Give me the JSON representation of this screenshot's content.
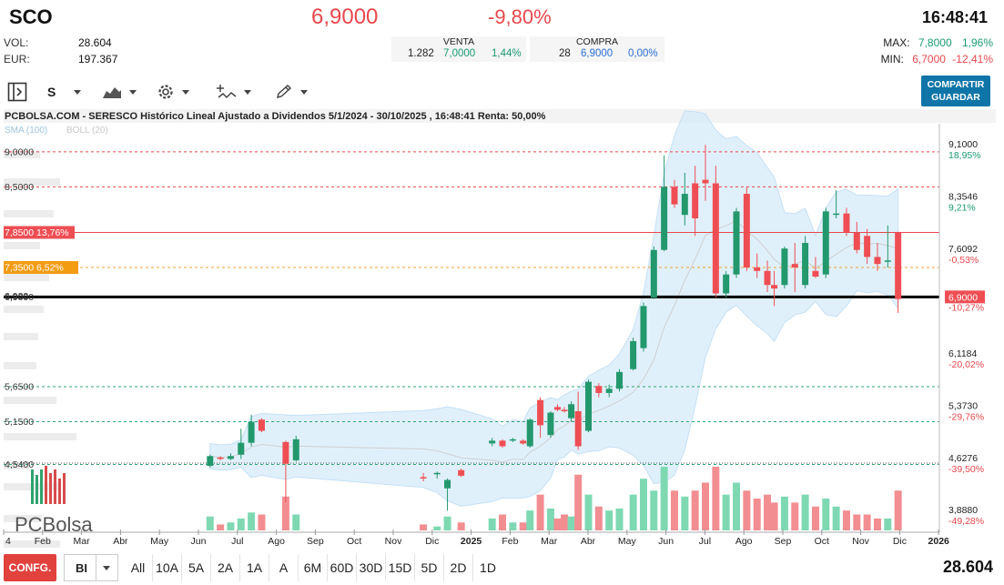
{
  "header": {
    "ticker": "SCO",
    "price": "6,9000",
    "change_pct": "-9,80%",
    "time": "16:48:41",
    "vol_label": "VOL:",
    "vol_value": "28.604",
    "eur_label": "EUR:",
    "eur_value": "197.367",
    "venta": {
      "label": "VENTA",
      "qty": "1.282",
      "price": "7,0000",
      "pct": "1,44%"
    },
    "compra": {
      "label": "COMPRA",
      "qty": "28",
      "price": "6,9000",
      "pct": "0,00%"
    },
    "max_label": "MAX:",
    "max_value": "7,8000",
    "max_pct": "1,96%",
    "min_label": "MIN:",
    "min_value": "6,7000",
    "min_pct": "-12,41%"
  },
  "toolbar": {
    "timeframe_label": "S",
    "share_label_1": "COMPARTIR",
    "share_label_2": "GUARDAR"
  },
  "chart": {
    "title": "PCBOLSA.COM - SERESCO Histórico Lineal Ajustado a Dividendos 5/1/2024 - 30/10/2025 , 16:48:41 Renta: 50,00%",
    "indicators_sma": "SMA (100)",
    "indicators_boll": "BOLL (20)",
    "logo_text": "PCBolsa",
    "left_labels": [
      {
        "text": "9,0000",
        "y": 9.0,
        "type": "plain"
      },
      {
        "text": "8,5000",
        "y": 8.5,
        "type": "plain"
      },
      {
        "text": "7,8500  13,76%",
        "y": 7.85,
        "type": "red"
      },
      {
        "text": "7,3500  6,52%",
        "y": 7.35,
        "type": "orange"
      },
      {
        "text": "6,9000",
        "y": 6.93,
        "type": "plain"
      },
      {
        "text": "6,922",
        "y": 6.94,
        "type": "plain"
      },
      {
        "text": "5,6500",
        "y": 5.65,
        "type": "plain"
      },
      {
        "text": "5,1500",
        "y": 5.15,
        "type": "plain"
      },
      {
        "text": "4,5400",
        "y": 4.54,
        "type": "plain"
      }
    ],
    "right_labels": [
      {
        "price": "9,1000",
        "pct": "18,95%",
        "y": 9.1,
        "pos": true
      },
      {
        "price": "8,3546",
        "pct": "9,21%",
        "y": 8.3546,
        "pos": true
      },
      {
        "price": "7,6092",
        "pct": "-0,53%",
        "y": 7.6092,
        "pos": false
      },
      {
        "price": "6,1184",
        "pct": "-20,02%",
        "y": 6.1184,
        "pos": false
      },
      {
        "price": "5,3730",
        "pct": "-29,76%",
        "y": 5.373,
        "pos": false
      },
      {
        "price": "4,6276",
        "pct": "-39,50%",
        "y": 4.6276,
        "pos": false
      },
      {
        "price": "3,8880",
        "pct": "-49,28%",
        "y": 3.888,
        "pos": false
      }
    ],
    "current_price_label": "6,9000",
    "current_pct_label": "-10,27%",
    "x_labels": [
      "4",
      "Feb",
      "Mar",
      "Abr",
      "May",
      "Jun",
      "Jul",
      "Ago",
      "Sep",
      "Oct",
      "Nov",
      "Dic",
      "2025",
      "Feb",
      "Mar",
      "Abr",
      "May",
      "Jun",
      "Jul",
      "Ago",
      "Sep",
      "Oct",
      "Nov",
      "Dic",
      "2026"
    ]
  },
  "chart_data": {
    "type": "candlestick",
    "ylim": [
      3.6,
      9.4
    ],
    "reference_lines": [
      9.0,
      8.5,
      7.85,
      7.35,
      6.93,
      5.65,
      5.15,
      4.54
    ],
    "candles": [
      {
        "t": 30.0,
        "o": 4.52,
        "h": 4.68,
        "l": 4.5,
        "c": 4.66,
        "v": 0.35
      },
      {
        "t": 31.5,
        "o": 4.64,
        "h": 4.66,
        "l": 4.6,
        "c": 4.62,
        "v": 0.15
      },
      {
        "t": 33.0,
        "o": 4.62,
        "h": 4.7,
        "l": 4.6,
        "c": 4.66,
        "v": 0.2
      },
      {
        "t": 34.5,
        "o": 4.68,
        "h": 5.05,
        "l": 4.62,
        "c": 4.85,
        "v": 0.3
      },
      {
        "t": 36.0,
        "o": 4.85,
        "h": 5.25,
        "l": 4.8,
        "c": 5.15,
        "v": 0.45
      },
      {
        "t": 37.5,
        "o": 5.18,
        "h": 5.2,
        "l": 5.0,
        "c": 5.02,
        "v": 0.4
      },
      {
        "t": 41.0,
        "o": 4.86,
        "h": 4.88,
        "l": 4.0,
        "c": 4.55,
        "v": 0.85
      },
      {
        "t": 42.5,
        "o": 4.6,
        "h": 4.95,
        "l": 4.58,
        "c": 4.9,
        "v": 0.4
      },
      {
        "t": 61.0,
        "o": 4.36,
        "h": 4.42,
        "l": 4.3,
        "c": 4.34,
        "v": 0.15
      },
      {
        "t": 63.0,
        "o": 4.4,
        "h": 4.44,
        "l": 4.34,
        "c": 4.42,
        "v": 0.1
      },
      {
        "t": 64.5,
        "o": 4.2,
        "h": 4.34,
        "l": 3.88,
        "c": 4.32,
        "v": 0.35
      },
      {
        "t": 66.5,
        "o": 4.46,
        "h": 4.48,
        "l": 4.36,
        "c": 4.38,
        "v": 0.2
      },
      {
        "t": 71.0,
        "o": 4.84,
        "h": 4.92,
        "l": 4.8,
        "c": 4.88,
        "v": 0.3
      },
      {
        "t": 72.5,
        "o": 4.88,
        "h": 4.9,
        "l": 4.78,
        "c": 4.8,
        "v": 0.4
      },
      {
        "t": 74.0,
        "o": 4.88,
        "h": 4.92,
        "l": 4.86,
        "c": 4.9,
        "v": 0.2
      },
      {
        "t": 75.5,
        "o": 4.88,
        "h": 4.9,
        "l": 4.82,
        "c": 4.84,
        "v": 0.2
      },
      {
        "t": 76.5,
        "o": 4.8,
        "h": 5.2,
        "l": 4.78,
        "c": 5.18,
        "v": 0.5
      },
      {
        "t": 78.0,
        "o": 5.46,
        "h": 5.5,
        "l": 4.92,
        "c": 5.1,
        "v": 0.9
      },
      {
        "t": 79.5,
        "o": 4.96,
        "h": 5.3,
        "l": 4.92,
        "c": 5.28,
        "v": 0.55
      },
      {
        "t": 80.5,
        "o": 5.36,
        "h": 5.4,
        "l": 5.3,
        "c": 5.32,
        "v": 0.3
      },
      {
        "t": 81.5,
        "o": 5.32,
        "h": 5.36,
        "l": 5.28,
        "c": 5.3,
        "v": 0.4
      },
      {
        "t": 82.5,
        "o": 5.2,
        "h": 5.44,
        "l": 5.15,
        "c": 5.4,
        "v": 0.35
      },
      {
        "t": 83.5,
        "o": 5.3,
        "h": 5.58,
        "l": 4.75,
        "c": 4.8,
        "v": 1.4
      },
      {
        "t": 85.0,
        "o": 5.02,
        "h": 5.75,
        "l": 5.0,
        "c": 5.72,
        "v": 0.9
      },
      {
        "t": 86.5,
        "o": 5.66,
        "h": 5.7,
        "l": 5.5,
        "c": 5.56,
        "v": 0.6
      },
      {
        "t": 88.0,
        "o": 5.56,
        "h": 5.68,
        "l": 5.5,
        "c": 5.62,
        "v": 0.5
      },
      {
        "t": 89.5,
        "o": 5.62,
        "h": 5.9,
        "l": 5.58,
        "c": 5.86,
        "v": 0.55
      },
      {
        "t": 91.5,
        "o": 5.9,
        "h": 6.35,
        "l": 5.88,
        "c": 6.3,
        "v": 0.9
      },
      {
        "t": 93.0,
        "o": 6.2,
        "h": 6.85,
        "l": 6.15,
        "c": 6.8,
        "v": 1.3
      },
      {
        "t": 94.5,
        "o": 6.92,
        "h": 7.65,
        "l": 6.9,
        "c": 7.6,
        "v": 1.0
      },
      {
        "t": 96.0,
        "o": 7.6,
        "h": 8.95,
        "l": 7.58,
        "c": 8.5,
        "v": 1.6
      },
      {
        "t": 97.5,
        "o": 8.5,
        "h": 8.6,
        "l": 8.2,
        "c": 8.25,
        "v": 1.0
      },
      {
        "t": 99.0,
        "o": 8.1,
        "h": 8.7,
        "l": 7.95,
        "c": 8.4,
        "v": 0.85
      },
      {
        "t": 100.5,
        "o": 8.55,
        "h": 8.8,
        "l": 7.8,
        "c": 8.05,
        "v": 1.0
      },
      {
        "t": 102.0,
        "o": 8.6,
        "h": 9.1,
        "l": 8.3,
        "c": 8.55,
        "v": 1.2
      },
      {
        "t": 103.5,
        "o": 8.55,
        "h": 8.8,
        "l": 6.92,
        "c": 6.98,
        "v": 1.6
      },
      {
        "t": 105.0,
        "o": 6.98,
        "h": 7.3,
        "l": 6.92,
        "c": 7.25,
        "v": 0.9
      },
      {
        "t": 106.5,
        "o": 7.25,
        "h": 8.2,
        "l": 7.2,
        "c": 8.15,
        "v": 1.2
      },
      {
        "t": 108.0,
        "o": 8.4,
        "h": 8.5,
        "l": 7.3,
        "c": 7.35,
        "v": 1.0
      },
      {
        "t": 109.5,
        "o": 7.35,
        "h": 7.55,
        "l": 7.2,
        "c": 7.3,
        "v": 0.8
      },
      {
        "t": 111.0,
        "o": 7.3,
        "h": 7.45,
        "l": 7.0,
        "c": 7.1,
        "v": 0.9
      },
      {
        "t": 112.0,
        "o": 7.1,
        "h": 7.3,
        "l": 6.8,
        "c": 7.05,
        "v": 0.7
      },
      {
        "t": 113.5,
        "o": 7.1,
        "h": 7.65,
        "l": 7.05,
        "c": 7.62,
        "v": 0.85
      },
      {
        "t": 115.0,
        "o": 7.4,
        "h": 7.7,
        "l": 7.0,
        "c": 7.35,
        "v": 0.7
      },
      {
        "t": 116.5,
        "o": 7.1,
        "h": 7.8,
        "l": 7.05,
        "c": 7.7,
        "v": 0.9
      },
      {
        "t": 118.0,
        "o": 7.3,
        "h": 7.5,
        "l": 7.2,
        "c": 7.22,
        "v": 0.6
      },
      {
        "t": 119.5,
        "o": 7.25,
        "h": 8.2,
        "l": 7.2,
        "c": 8.15,
        "v": 0.8
      },
      {
        "t": 121.0,
        "o": 8.1,
        "h": 8.45,
        "l": 8.05,
        "c": 8.12,
        "v": 0.6
      },
      {
        "t": 122.5,
        "o": 8.12,
        "h": 8.2,
        "l": 7.8,
        "c": 7.85,
        "v": 0.5
      },
      {
        "t": 124.0,
        "o": 7.85,
        "h": 8.0,
        "l": 7.55,
        "c": 7.6,
        "v": 0.4
      },
      {
        "t": 125.5,
        "o": 7.8,
        "h": 7.9,
        "l": 7.4,
        "c": 7.5,
        "v": 0.4
      },
      {
        "t": 127.0,
        "o": 7.5,
        "h": 7.7,
        "l": 7.3,
        "c": 7.4,
        "v": 0.3
      },
      {
        "t": 128.5,
        "o": 7.45,
        "h": 7.95,
        "l": 7.35,
        "c": 7.45,
        "v": 0.3
      },
      {
        "t": 130.0,
        "o": 7.85,
        "h": 7.86,
        "l": 6.7,
        "c": 6.9,
        "v": 1.0
      }
    ]
  }
}
